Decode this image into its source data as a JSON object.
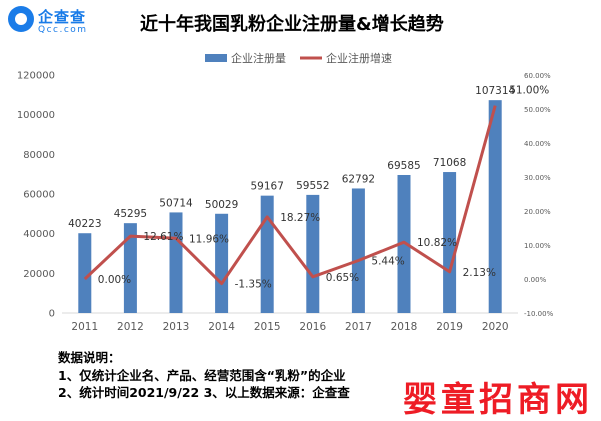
{
  "logo": {
    "name": "企查查",
    "domain": "Qcc.com"
  },
  "title": "近十年我国乳粉企业注册量&增长趋势",
  "notes": [
    "数据说明：",
    "1、仅统计企业名、产品、经营范围含“乳粉”的企业",
    "2、统计时间2021/9/22    3、以上数据来源：企查查"
  ],
  "watermark": "婴童招商网",
  "colors": {
    "bar": "#4f81bd",
    "line": "#c0504d",
    "axis_text": "#595959",
    "grid": "#d9d9d9"
  },
  "chart_data": {
    "type": "bar",
    "categories": [
      "2011",
      "2012",
      "2013",
      "2014",
      "2015",
      "2016",
      "2017",
      "2018",
      "2019",
      "2020"
    ],
    "series": [
      {
        "name": "企业注册量",
        "type": "bar",
        "axis": "left",
        "values": [
          40223,
          45295,
          50714,
          50029,
          59167,
          59552,
          62792,
          69585,
          71068,
          107314
        ],
        "labels": [
          "40223",
          "45295",
          "50714",
          "50029",
          "59167",
          "59552",
          "62792",
          "69585",
          "71068",
          "107314"
        ]
      },
      {
        "name": "企业注册增速",
        "type": "line",
        "axis": "right",
        "values": [
          0.0,
          12.61,
          11.96,
          -1.35,
          18.27,
          0.65,
          5.44,
          10.82,
          2.13,
          51.0
        ],
        "labels": [
          "0.00%",
          "12.61%",
          "11.96%",
          "-1.35%",
          "18.27%",
          "0.65%",
          "5.44%",
          "10.82%",
          "2.13%",
          "51.00%"
        ]
      }
    ],
    "y_left": {
      "ylim": [
        0,
        120000
      ],
      "ticks": [
        0,
        20000,
        40000,
        60000,
        80000,
        100000,
        120000
      ],
      "tick_labels": [
        "0",
        "20000",
        "40000",
        "60000",
        "80000",
        "100000",
        "120000"
      ]
    },
    "y_right": {
      "ylim": [
        -10,
        60
      ],
      "ticks": [
        -10,
        0,
        10,
        20,
        30,
        40,
        50,
        60
      ],
      "tick_labels": [
        "-10.00%",
        "0.00%",
        "10.00%",
        "20.00%",
        "30.00%",
        "40.00%",
        "50.00%",
        "60.00%"
      ]
    },
    "legend_position": "top-center",
    "grid": false
  }
}
